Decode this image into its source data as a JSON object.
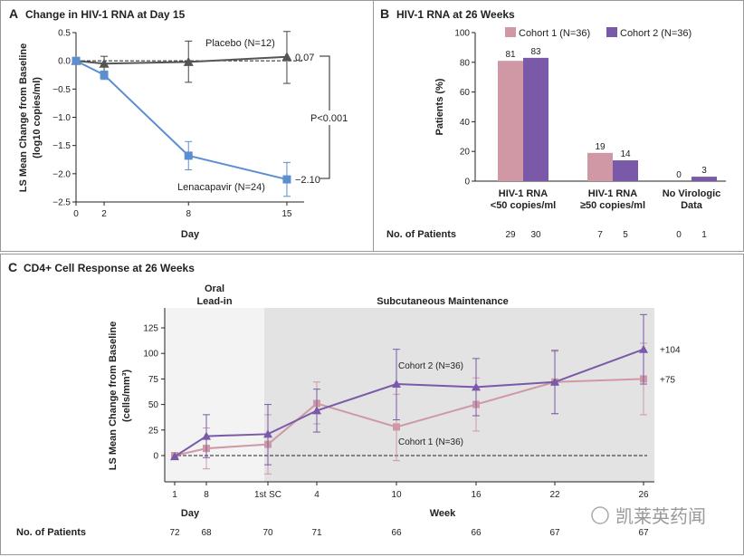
{
  "chart_data": [
    {
      "panel": "A",
      "type": "line",
      "title": "Change in HIV-1 RNA at Day 15",
      "xlabel": "Day",
      "ylabel": "LS Mean Change from Baseline",
      "ylabel2": "(log10 copies/ml)",
      "x": [
        0,
        2,
        8,
        15
      ],
      "xticks": [
        0,
        2,
        8,
        15
      ],
      "yticks": [
        0.5,
        0.0,
        -0.5,
        -1.0,
        -1.5,
        -2.0,
        -2.5
      ],
      "ytick_labels": [
        "0.5",
        "0.0",
        "−0.5",
        "−1.0",
        "−1.5",
        "−2.0",
        "−2.5"
      ],
      "ylim": [
        -2.5,
        0.5
      ],
      "xlim": [
        0,
        16.5
      ],
      "reference_line": 0,
      "series": [
        {
          "name": "Placebo (N=12)",
          "color": "#555555",
          "marker": "triangle",
          "values": [
            0,
            -0.05,
            -0.02,
            0.07
          ],
          "err_low": [
            0,
            -0.2,
            -0.38,
            -0.4
          ],
          "err_high": [
            0,
            0.08,
            0.35,
            0.52
          ],
          "end_label": "0.07"
        },
        {
          "name": "Lenacapavir (N=24)",
          "color": "#5b8fd0",
          "marker": "square",
          "values": [
            0,
            -0.25,
            -1.68,
            -2.1
          ],
          "err_low": [
            0,
            -0.33,
            -1.93,
            -2.4
          ],
          "err_high": [
            0,
            -0.18,
            -1.43,
            -1.8
          ],
          "end_label": "−2.10"
        }
      ],
      "annotation": "P<0.001"
    },
    {
      "panel": "B",
      "type": "bar",
      "title": "HIV-1 RNA at 26 Weeks",
      "ylabel": "Patients (%)",
      "ylim": [
        0,
        100
      ],
      "yticks": [
        0,
        20,
        40,
        60,
        80,
        100
      ],
      "categories": [
        [
          "HIV-1 RNA",
          "<50 copies/ml"
        ],
        [
          "HIV-1 RNA",
          "≥50 copies/ml"
        ],
        [
          "No Virologic",
          "Data"
        ]
      ],
      "series": [
        {
          "name": "Cohort 1 (N=36)",
          "color": "#cf98a4",
          "values": [
            81,
            19,
            0
          ],
          "patients": [
            "29",
            "7",
            "0"
          ]
        },
        {
          "name": "Cohort 2 (N=36)",
          "color": "#7a5aa8",
          "values": [
            83,
            14,
            3
          ],
          "patients": [
            "30",
            "5",
            "1"
          ]
        }
      ],
      "legend": "top",
      "patients_label": "No. of Patients"
    },
    {
      "panel": "C",
      "type": "line",
      "title": "CD4+ Cell Response at 26 Weeks",
      "ylabel": "LS Mean Change from Baseline",
      "ylabel2": "(cells/mm³)",
      "x_labels": [
        "1",
        "8",
        "1st SC",
        "4",
        "10",
        "16",
        "22",
        "26"
      ],
      "xlabel_day": "Day",
      "xlabel_week": "Week",
      "yticks": [
        0,
        25,
        50,
        75,
        100,
        125
      ],
      "ylim": [
        -25,
        144
      ],
      "reference_line": 0,
      "phases": [
        {
          "label": [
            "Oral",
            "Lead-in"
          ],
          "color": "#f3f3f3"
        },
        {
          "label": [
            "Subcutaneous Maintenance"
          ],
          "color": "#e3e3e3"
        }
      ],
      "series": [
        {
          "name": "Cohort 1 (N=36)",
          "color": "#cf98a4",
          "marker": "square",
          "values": [
            0,
            7,
            11,
            51,
            28,
            50,
            72,
            75
          ],
          "err_low": [
            0,
            -13,
            -18,
            31,
            -5,
            24,
            41,
            40
          ],
          "err_high": [
            0,
            27,
            40,
            72,
            60,
            76,
            102,
            110
          ],
          "end_label": "+75"
        },
        {
          "name": "Cohort 2 (N=36)",
          "color": "#7a5aa8",
          "marker": "triangle",
          "values": [
            -1,
            19,
            21,
            44,
            70,
            67,
            72,
            104
          ],
          "err_low": [
            -1,
            -2,
            -9,
            23,
            35,
            39,
            41,
            70
          ],
          "err_high": [
            -1,
            40,
            50,
            65,
            104,
            95,
            103,
            138
          ],
          "end_label": "+104"
        }
      ],
      "patients_label": "No. of Patients",
      "patients": [
        "72",
        "68",
        "70",
        "71",
        "66",
        "66",
        "67",
        "67"
      ]
    }
  ],
  "watermark": "凯莱英药闻"
}
